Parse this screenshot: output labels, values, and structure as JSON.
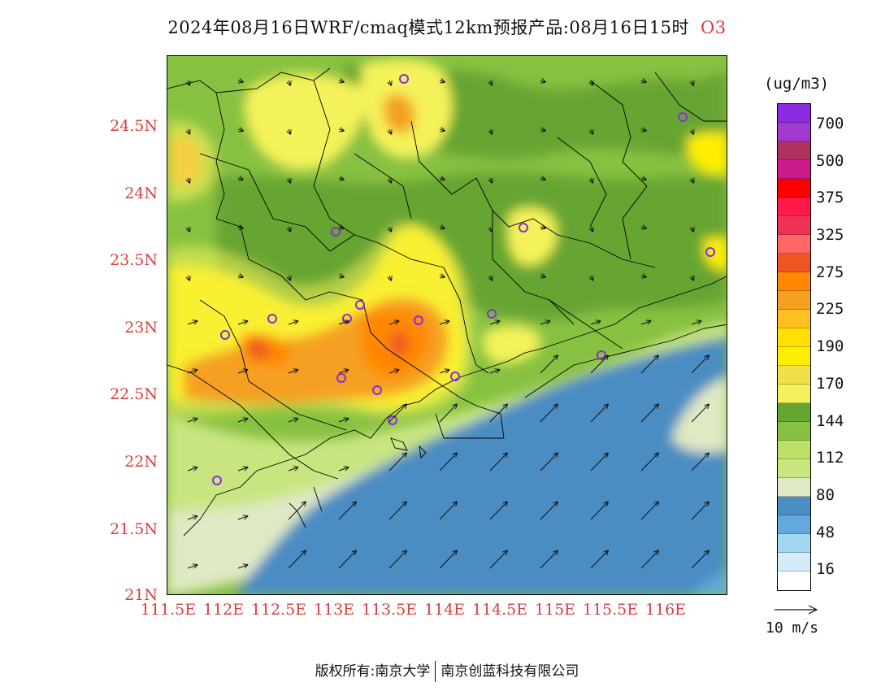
{
  "title": {
    "text": "2024年08月16日WRF/cmaq模式12km预报产品:08月16日15时",
    "species": "O3"
  },
  "axes": {
    "lat_labels": [
      "24.5N",
      "24N",
      "23.5N",
      "23N",
      "22.5N",
      "22N",
      "21.5N",
      "21N"
    ],
    "lon_labels": [
      "111.5E",
      "112E",
      "112.5E",
      "113E",
      "113.5E",
      "114E",
      "114.5E",
      "115E",
      "115.5E",
      "116E"
    ]
  },
  "legend": {
    "unit": "(ug/m3)",
    "colors": [
      "#8a2be2",
      "#a23ad0",
      "#b03060",
      "#cc1a8a",
      "#ff0000",
      "#ff1a4a",
      "#ee3355",
      "#ff6666",
      "#ee5522",
      "#ff8800",
      "#f5a020",
      "#ffc020",
      "#ffe000",
      "#ffee00",
      "#f2e04a",
      "#f4f25a",
      "#66a531",
      "#88c141",
      "#bde06a",
      "#c8e580",
      "#dfe9c4",
      "#4c8dc2",
      "#64a8dc",
      "#a4d8f2",
      "#d4ecfa",
      "#ffffff"
    ],
    "labels": [
      "700",
      "500",
      "375",
      "325",
      "275",
      "225",
      "190",
      "170",
      "144",
      "112",
      "80",
      "48",
      "16"
    ]
  },
  "wind_key": {
    "label": "10 m/s"
  },
  "footer": {
    "copyright": "版权所有:南京大学",
    "company": "南京创蓝科技有限公司"
  }
}
